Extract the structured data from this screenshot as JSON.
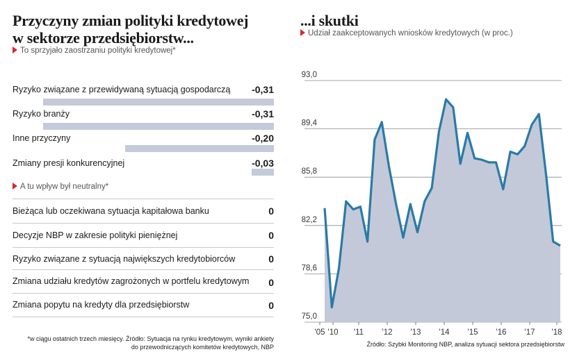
{
  "left": {
    "title_line1": "Przyczyny zmian polityki kredytowej",
    "title_line2": "w sektorze przedsiębiorstw...",
    "subtitle1": "To sprzyjało zaostrzaniu polityki kredytowej*",
    "subtitle2": "A tu wpływ był neutralny*",
    "tightening": [
      {
        "label": "Ryzyko związane z przewidywaną sytuacją gospodarczą",
        "value": -0.31,
        "display": "-0,31"
      },
      {
        "label": "Ryzyko branży",
        "value": -0.31,
        "display": "-0,31"
      },
      {
        "label": "Inne przyczyny",
        "value": -0.2,
        "display": "-0,20"
      },
      {
        "label": "Zmiany presji konkurencyjnej",
        "value": -0.03,
        "display": "-0,03"
      }
    ],
    "neutral": [
      {
        "label": "Bieżąca lub oczekiwana sytuacja kapitałowa banku",
        "display": "0"
      },
      {
        "label": "Decyzje NBP w zakresie polityki pieniężnej",
        "display": "0"
      },
      {
        "label": "Ryzyko związane z sytuacją największych kredytobiorców",
        "display": "0"
      },
      {
        "label": "Zmiana udziału kredytów zagrożonych w portfelu kredytowym",
        "display": "0"
      },
      {
        "label": "Zmiana popytu na kredyty dla przedsiębiorstw",
        "display": "0"
      }
    ],
    "footnote_line1": "*w ciągu ostatnich trzech miesięcy. Źródło: Sytuacja na rynku kredytowym, wyniki ankiety",
    "footnote_line2": "do przewodniczących komitetów kredytowych, NBP",
    "bar_color": "#c4cad9"
  },
  "right": {
    "title": "...i skutki",
    "subtitle": "Udział zaakceptowanych wniosków kredytowych (w proc.)",
    "source": "Źródło: Szybki Monitoring NBP, analiza sytuacji sektora przedsiębiorstw"
  },
  "chart_data": {
    "type": "area",
    "x_ticks": [
      "'05",
      "'10",
      "'11",
      "'12",
      "'13",
      "'14",
      "'15",
      "'16",
      "'17",
      "'18"
    ],
    "y_ticks": [
      "93,0",
      "89,4",
      "85,8",
      "82,2",
      "78,6",
      "75,0"
    ],
    "ylim": [
      75.0,
      93.0
    ],
    "grid": true,
    "line_color": "#2a7aa8",
    "fill_color": "#c3c9d8",
    "values": [
      83.5,
      76.1,
      79.0,
      84.0,
      83.4,
      83.6,
      81.0,
      88.6,
      89.9,
      86.6,
      83.8,
      81.3,
      83.8,
      81.7,
      84.0,
      85.0,
      89.2,
      91.6,
      91.0,
      86.8,
      89.1,
      87.2,
      87.1,
      86.9,
      86.9,
      84.9,
      87.7,
      87.5,
      88.1,
      89.7,
      90.5,
      86.0,
      81.0,
      80.7
    ]
  }
}
